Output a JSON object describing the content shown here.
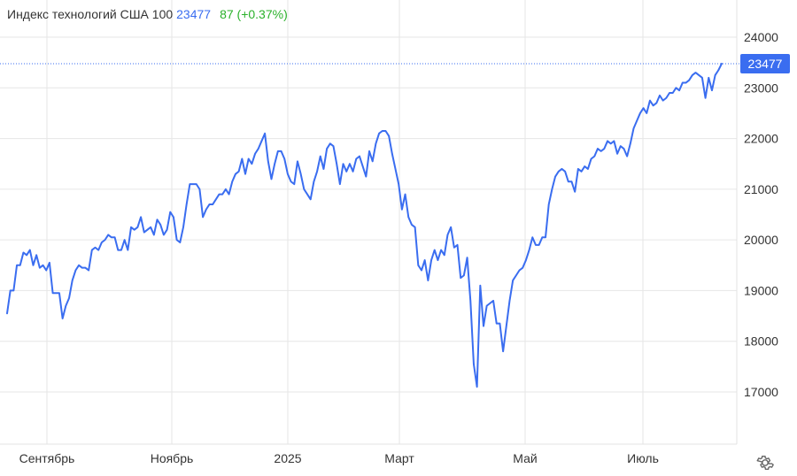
{
  "header": {
    "title": "Индекс технологий США 100",
    "price": "23477",
    "change": "87 (+0.37%)"
  },
  "colors": {
    "line": "#3a6df0",
    "change_positive": "#2bb12b",
    "grid": "#e6e6e6",
    "text": "#333333"
  },
  "icons": {
    "settings": "gear-icon"
  },
  "chart_data": {
    "type": "line",
    "title": "Индекс технологий США 100",
    "y_ticks": [
      "24000",
      "23000",
      "22000",
      "21000",
      "20000",
      "19000",
      "18000",
      "17000"
    ],
    "x_tick_labels": [
      "Сентябрь",
      "Ноябрь",
      "2025",
      "Март",
      "Май",
      "Июль"
    ],
    "ylim": [
      16000,
      24500
    ],
    "grid": true,
    "last_value_label": "23477",
    "last_value": 23477,
    "series": [
      {
        "values": [
          18550,
          19000,
          19000,
          19500,
          19500,
          19750,
          19700,
          19800,
          19500,
          19700,
          19450,
          19500,
          19400,
          19550,
          18950,
          18950,
          18950,
          18450,
          18700,
          18850,
          19200,
          19400,
          19500,
          19450,
          19450,
          19400,
          19800,
          19850,
          19800,
          19950,
          20000,
          20100,
          20050,
          20050,
          19800,
          19800,
          20000,
          19800,
          20250,
          20200,
          20250,
          20450,
          20150,
          20200,
          20250,
          20100,
          20400,
          20300,
          20100,
          20200,
          20550,
          20450,
          20000,
          19950,
          20250,
          20700,
          21100,
          21100,
          21100,
          21000,
          20450,
          20600,
          20700,
          20700,
          20800,
          20900,
          20900,
          21000,
          20900,
          21150,
          21300,
          21350,
          21600,
          21300,
          21600,
          21500,
          21700,
          21800,
          21950,
          22100,
          21550,
          21200,
          21500,
          21750,
          21750,
          21600,
          21300,
          21150,
          21100,
          21550,
          21300,
          21000,
          20900,
          20800,
          21150,
          21350,
          21650,
          21400,
          21800,
          21900,
          21850,
          21500,
          21100,
          21500,
          21350,
          21500,
          21350,
          21600,
          21650,
          21450,
          21250,
          21750,
          21550,
          21900,
          22100,
          22150,
          22150,
          22050,
          21700,
          21400,
          21100,
          20600,
          20900,
          20450,
          20300,
          20250,
          19500,
          19400,
          19600,
          19200,
          19600,
          19800,
          19600,
          19800,
          19700,
          20100,
          20250,
          19850,
          19900,
          19250,
          19300,
          19650,
          18800,
          17550,
          17100,
          19100,
          18300,
          18700,
          18750,
          18800,
          18350,
          18350,
          17800,
          18300,
          18800,
          19200,
          19300,
          19400,
          19450,
          19600,
          19800,
          20050,
          19900,
          19900,
          20050,
          20050,
          20700,
          21000,
          21250,
          21350,
          21400,
          21350,
          21150,
          21150,
          20950,
          21400,
          21350,
          21450,
          21400,
          21600,
          21650,
          21800,
          21750,
          21800,
          21950,
          21900,
          21950,
          21700,
          21850,
          21800,
          21650,
          21900,
          22200,
          22350,
          22500,
          22600,
          22500,
          22750,
          22650,
          22700,
          22850,
          22750,
          22800,
          22900,
          22900,
          23000,
          22950,
          23100,
          23100,
          23150,
          23250,
          23300,
          23250,
          23200,
          22800,
          23200,
          22950,
          23250,
          23350,
          23477
        ]
      }
    ]
  }
}
